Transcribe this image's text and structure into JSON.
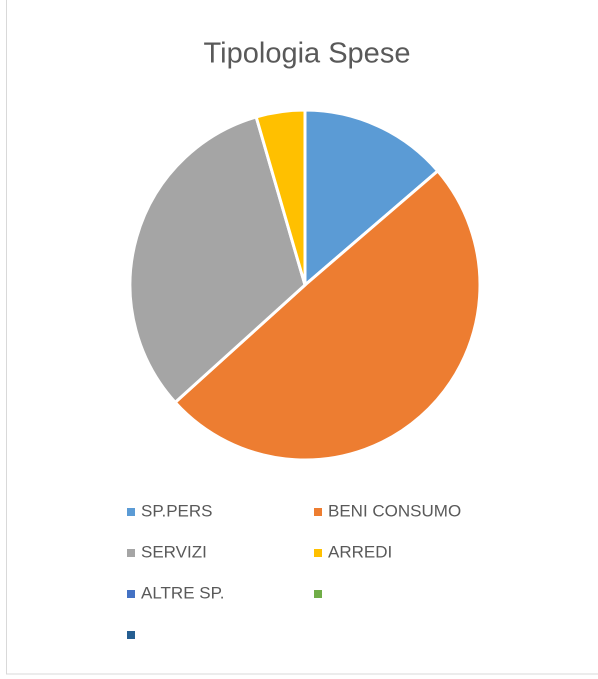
{
  "chart_data": {
    "type": "pie",
    "title": "Tipologia Spese",
    "categories": [
      "SP.PERS",
      "BENI CONSUMO",
      "SERVIZI",
      "ARREDI",
      "ALTRE SP.",
      null,
      null
    ],
    "values": [
      13.7,
      49.6,
      32.2,
      4.5,
      0,
      0,
      0
    ],
    "colors": [
      "#5b9bd5",
      "#ed7d31",
      "#a5a5a5",
      "#ffc000",
      "#4472c4",
      "#70ad47",
      "#255e91"
    ],
    "legend": "bottom"
  }
}
